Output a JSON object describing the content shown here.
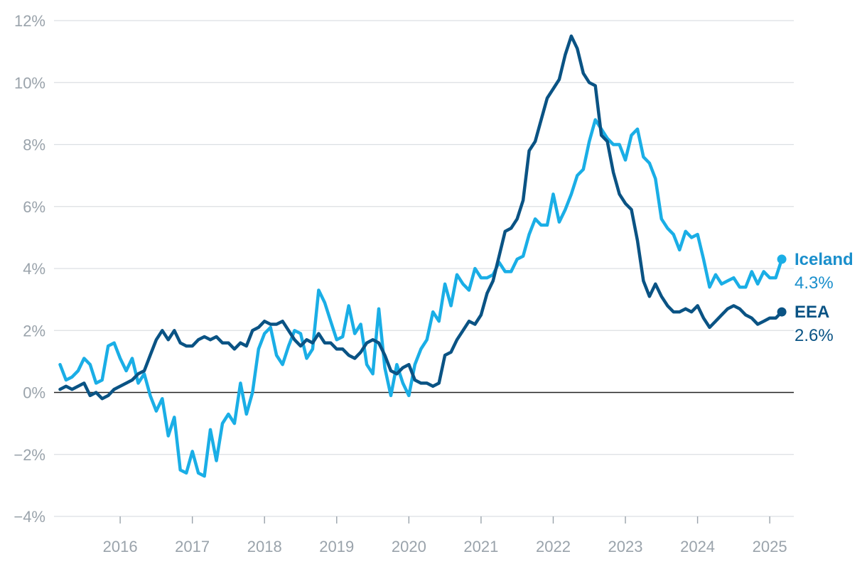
{
  "chart_data": {
    "type": "line",
    "title": "",
    "xlabel": "",
    "ylabel": "",
    "y_ticks": [
      "−4%",
      "−2%",
      "0%",
      "2%",
      "4%",
      "6%",
      "8%",
      "10%",
      "12%"
    ],
    "y_tick_values": [
      -4,
      -2,
      0,
      2,
      4,
      6,
      8,
      10,
      12
    ],
    "ylim": [
      -4,
      12
    ],
    "x_ticks": [
      "2016",
      "2017",
      "2018",
      "2019",
      "2020",
      "2021",
      "2022",
      "2023",
      "2024",
      "2025"
    ],
    "xlim": [
      "2015-08",
      "2025-11"
    ],
    "grid": "horizontal",
    "series": [
      {
        "name": "Iceland",
        "label": "Iceland",
        "value_label": "4.3%",
        "color": "#1aaee6",
        "start": "2015-09",
        "values": [
          0.9,
          0.4,
          0.5,
          0.7,
          1.1,
          0.9,
          0.3,
          0.4,
          1.5,
          1.6,
          1.1,
          0.7,
          1.1,
          0.3,
          0.6,
          -0.1,
          -0.6,
          -0.2,
          -1.4,
          -0.8,
          -2.5,
          -2.6,
          -1.9,
          -2.6,
          -2.7,
          -1.2,
          -2.2,
          -1.0,
          -0.7,
          -1.0,
          0.3,
          -0.7,
          0.0,
          1.4,
          1.9,
          2.1,
          1.2,
          0.9,
          1.5,
          2.0,
          1.9,
          1.1,
          1.4,
          3.3,
          2.9,
          2.3,
          1.7,
          1.8,
          2.8,
          1.9,
          2.2,
          0.9,
          0.6,
          2.7,
          0.8,
          -0.1,
          0.9,
          0.3,
          -0.1,
          0.9,
          1.4,
          1.7,
          2.6,
          2.3,
          3.5,
          2.8,
          3.8,
          3.5,
          3.3,
          4.0,
          3.7,
          3.7,
          3.8,
          4.2,
          3.9,
          3.9,
          4.3,
          4.4,
          5.1,
          5.6,
          5.4,
          5.4,
          6.4,
          5.5,
          5.9,
          6.4,
          7.0,
          7.2,
          8.1,
          8.8,
          8.5,
          8.2,
          8.0,
          8.0,
          7.5,
          8.3,
          8.5,
          7.6,
          7.4,
          6.9,
          5.6,
          5.3,
          5.1,
          4.6,
          5.2,
          5.0,
          5.1,
          4.3,
          3.4,
          3.8,
          3.5,
          3.6,
          3.7,
          3.4,
          3.4,
          3.9,
          3.5,
          3.9,
          3.7,
          3.7,
          4.3
        ]
      },
      {
        "name": "EEA",
        "label": "EEA",
        "value_label": "2.6%",
        "color": "#0a5384",
        "start": "2015-09",
        "values": [
          0.1,
          0.2,
          0.1,
          0.2,
          0.3,
          -0.1,
          0.0,
          -0.2,
          -0.1,
          0.1,
          0.2,
          0.3,
          0.4,
          0.6,
          0.7,
          1.2,
          1.7,
          2.0,
          1.7,
          2.0,
          1.6,
          1.5,
          1.5,
          1.7,
          1.8,
          1.7,
          1.8,
          1.6,
          1.6,
          1.4,
          1.6,
          1.5,
          2.0,
          2.1,
          2.3,
          2.2,
          2.2,
          2.3,
          2.0,
          1.7,
          1.5,
          1.7,
          1.6,
          1.9,
          1.6,
          1.6,
          1.4,
          1.4,
          1.2,
          1.1,
          1.3,
          1.6,
          1.7,
          1.6,
          1.2,
          0.7,
          0.6,
          0.8,
          0.9,
          0.4,
          0.3,
          0.3,
          0.2,
          0.3,
          1.2,
          1.3,
          1.7,
          2.0,
          2.3,
          2.2,
          2.5,
          3.2,
          3.6,
          4.4,
          5.2,
          5.3,
          5.6,
          6.2,
          7.8,
          8.1,
          8.8,
          9.5,
          9.8,
          10.1,
          10.9,
          11.5,
          11.1,
          10.3,
          10.0,
          9.9,
          8.3,
          8.1,
          7.1,
          6.4,
          6.1,
          5.9,
          4.9,
          3.6,
          3.1,
          3.5,
          3.1,
          2.8,
          2.6,
          2.6,
          2.7,
          2.6,
          2.8,
          2.4,
          2.1,
          2.3,
          2.5,
          2.7,
          2.8,
          2.7,
          2.5,
          2.4,
          2.2,
          2.3,
          2.4,
          2.4,
          2.6
        ]
      }
    ]
  }
}
